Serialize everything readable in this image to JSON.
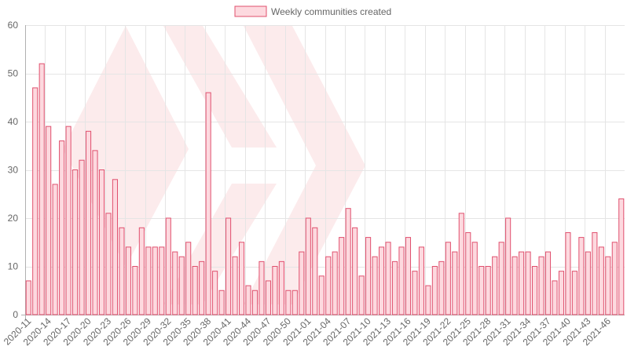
{
  "chart_data": {
    "type": "bar",
    "legend": {
      "label": "Weekly communities created",
      "position": "top-center"
    },
    "colors": {
      "bar_fill": "#fdd9df",
      "bar_stroke": "#e0506e",
      "watermark": "#fbe4e6"
    },
    "watermark_icon": "chevron-logo-icon",
    "grid": true,
    "ylim": [
      0,
      60
    ],
    "yticks": [
      0,
      10,
      20,
      30,
      40,
      50,
      60
    ],
    "categories": [
      "2020-11",
      "2020-12",
      "2020-13",
      "2020-14",
      "2020-15",
      "2020-16",
      "2020-17",
      "2020-18",
      "2020-19",
      "2020-20",
      "2020-21",
      "2020-22",
      "2020-23",
      "2020-24",
      "2020-25",
      "2020-26",
      "2020-27",
      "2020-28",
      "2020-29",
      "2020-30",
      "2020-31",
      "2020-32",
      "2020-33",
      "2020-34",
      "2020-35",
      "2020-36",
      "2020-37",
      "2020-38",
      "2020-39",
      "2020-40",
      "2020-41",
      "2020-42",
      "2020-43",
      "2020-44",
      "2020-45",
      "2020-46",
      "2020-47",
      "2020-48",
      "2020-49",
      "2020-50",
      "2020-51",
      "2020-52",
      "2021-01",
      "2021-02",
      "2021-03",
      "2021-04",
      "2021-05",
      "2021-06",
      "2021-07",
      "2021-08",
      "2021-09",
      "2021-10",
      "2021-11",
      "2021-12",
      "2021-13",
      "2021-14",
      "2021-15",
      "2021-16",
      "2021-17",
      "2021-18",
      "2021-19",
      "2021-20",
      "2021-21",
      "2021-22",
      "2021-23",
      "2021-24",
      "2021-25",
      "2021-26",
      "2021-27",
      "2021-28",
      "2021-29",
      "2021-30",
      "2021-31",
      "2021-32",
      "2021-33",
      "2021-34",
      "2021-35",
      "2021-36",
      "2021-37",
      "2021-38",
      "2021-39",
      "2021-40",
      "2021-41",
      "2021-42",
      "2021-43",
      "2021-44",
      "2021-45",
      "2021-46",
      "2021-47",
      "2021-48"
    ],
    "values": [
      7,
      47,
      52,
      39,
      27,
      36,
      39,
      30,
      32,
      38,
      34,
      30,
      21,
      28,
      18,
      14,
      10,
      18,
      14,
      14,
      14,
      20,
      13,
      12,
      15,
      10,
      11,
      46,
      9,
      5,
      20,
      12,
      15,
      6,
      5,
      11,
      7,
      10,
      11,
      5,
      5,
      13,
      20,
      18,
      8,
      12,
      13,
      16,
      22,
      18,
      8,
      16,
      12,
      14,
      15,
      11,
      14,
      16,
      9,
      14,
      6,
      10,
      11,
      15,
      13,
      21,
      17,
      15,
      10,
      10,
      12,
      15,
      20,
      12,
      13,
      13,
      10,
      12,
      13,
      7,
      9,
      17,
      9,
      16,
      13,
      17,
      14,
      12,
      15,
      24
    ],
    "xtick_labels_shown": [
      "2020-11",
      "2020-14",
      "2020-17",
      "2020-20",
      "2020-23",
      "2020-26",
      "2020-29",
      "2020-32",
      "2020-35",
      "2020-38",
      "2020-41",
      "2020-44",
      "2020-47",
      "2020-50",
      "2021-01",
      "2021-04",
      "2021-07",
      "2021-10",
      "2021-13",
      "2021-16",
      "2021-19",
      "2021-22",
      "2021-25",
      "2021-28",
      "2021-31",
      "2021-34",
      "2021-37",
      "2021-40",
      "2021-43",
      "2021-46"
    ]
  }
}
